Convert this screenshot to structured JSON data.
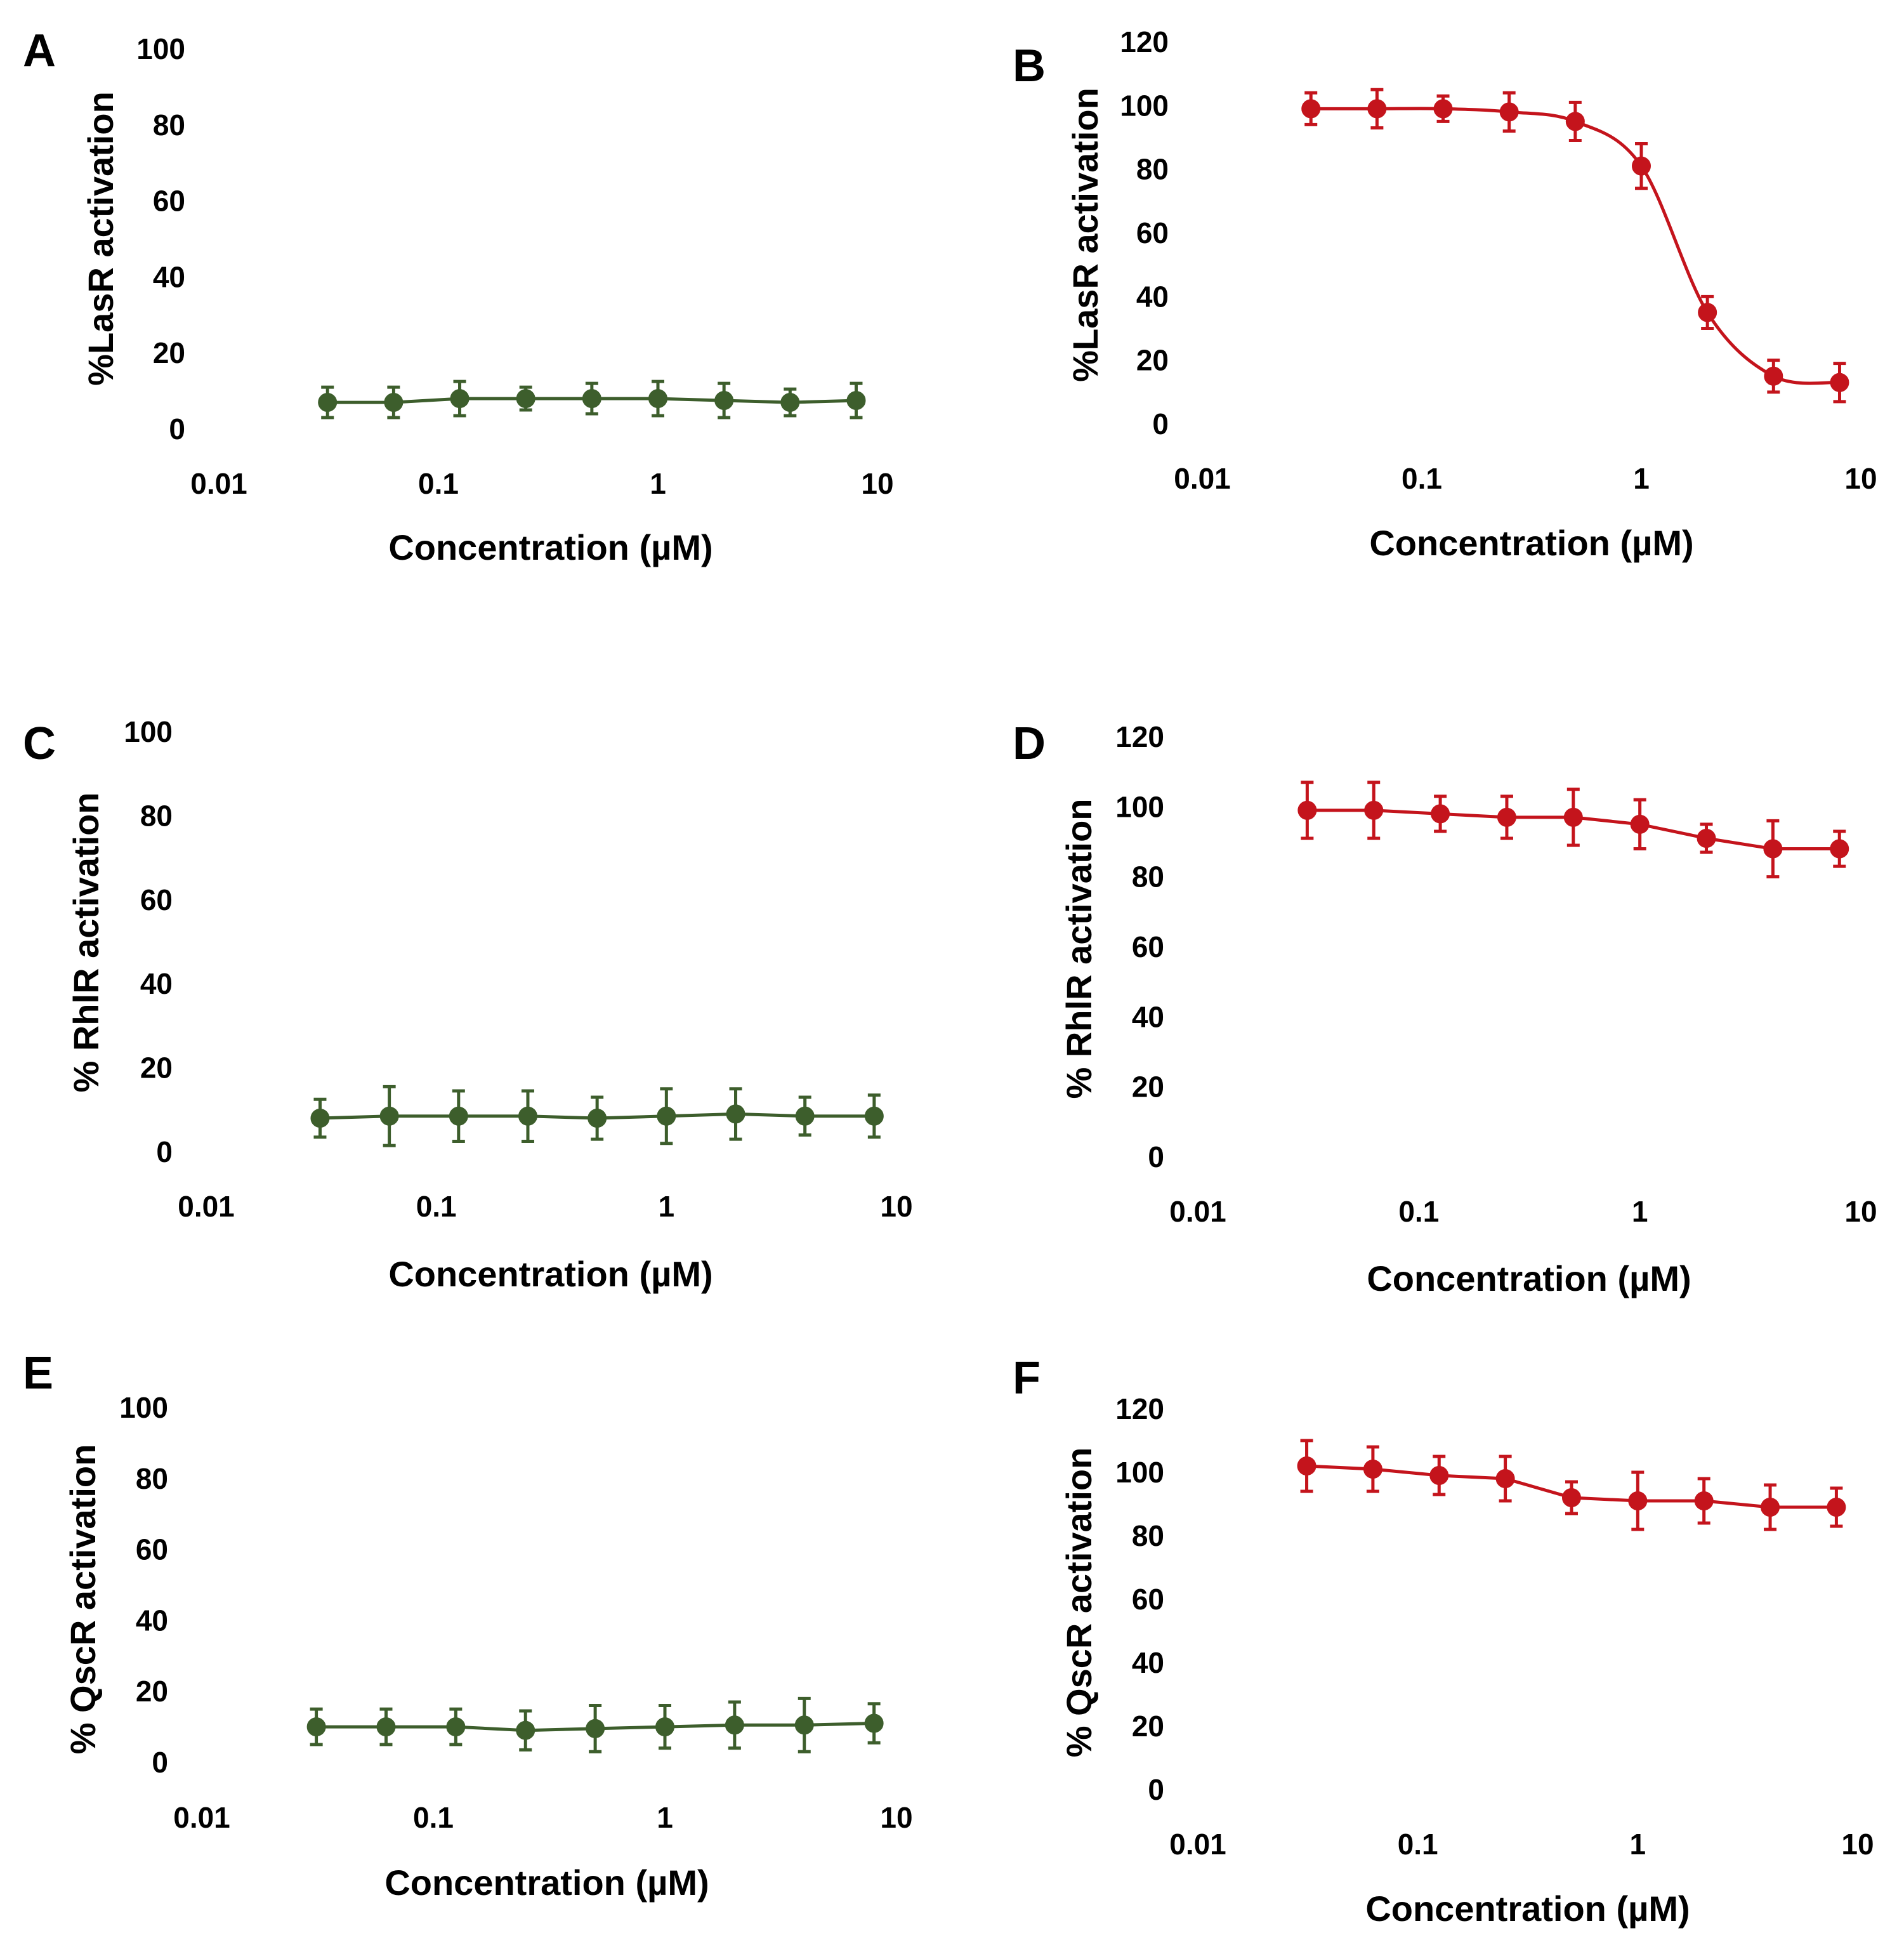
{
  "colors": {
    "green": "#3d5e2c",
    "red": "#c4141c"
  },
  "chart_data": [
    {
      "panel": "A",
      "type": "line",
      "color": "green",
      "ylabel": "%LasR activation",
      "xlabel": "Concentration (µM)",
      "xscale": "log",
      "xlim": [
        0.01,
        10
      ],
      "ylim": [
        0,
        100
      ],
      "xticks": [
        "0.01",
        "0.1",
        "1",
        "10"
      ],
      "yticks": [
        "0",
        "20",
        "40",
        "60",
        "80",
        "100"
      ],
      "series": [
        {
          "name": "A",
          "x": [
            0.03125,
            0.0625,
            0.125,
            0.25,
            0.5,
            1,
            2,
            4,
            8
          ],
          "y": [
            7,
            7,
            8,
            8,
            8,
            8,
            7.5,
            7,
            7.5
          ],
          "err": [
            4,
            4,
            4.5,
            3,
            4,
            4.5,
            4.5,
            3.5,
            4.5
          ]
        }
      ]
    },
    {
      "panel": "B",
      "type": "line",
      "color": "red",
      "smooth": true,
      "ylabel": "%LasR activation",
      "xlabel": "Concentration (µM)",
      "xscale": "log",
      "xlim": [
        0.01,
        10
      ],
      "ylim": [
        0,
        120
      ],
      "xticks": [
        "0.01",
        "0.1",
        "1",
        "10"
      ],
      "yticks": [
        "0",
        "20",
        "40",
        "60",
        "80",
        "100",
        "120"
      ],
      "series": [
        {
          "name": "B",
          "x": [
            0.03125,
            0.0625,
            0.125,
            0.25,
            0.5,
            1,
            2,
            4,
            8
          ],
          "y": [
            99,
            99,
            99,
            98,
            95,
            81,
            35,
            15,
            13
          ],
          "err": [
            5,
            6,
            4,
            6,
            6,
            7,
            5,
            5,
            6
          ]
        }
      ]
    },
    {
      "panel": "C",
      "type": "line",
      "color": "green",
      "ylabel": "% RhlR activation",
      "xlabel": "Concentration (µM)",
      "xscale": "log",
      "xlim": [
        0.01,
        10
      ],
      "ylim": [
        0,
        100
      ],
      "xticks": [
        "0.01",
        "0.1",
        "1",
        "10"
      ],
      "yticks": [
        "0",
        "20",
        "40",
        "60",
        "80",
        "100"
      ],
      "series": [
        {
          "name": "C",
          "x": [
            0.03125,
            0.0625,
            0.125,
            0.25,
            0.5,
            1,
            2,
            4,
            8
          ],
          "y": [
            8,
            8.5,
            8.5,
            8.5,
            8,
            8.5,
            9,
            8.5,
            8.5
          ],
          "err": [
            4.5,
            7,
            6,
            6,
            5,
            6.5,
            6,
            4.5,
            5
          ]
        }
      ]
    },
    {
      "panel": "D",
      "type": "line",
      "color": "red",
      "ylabel": "% RhlR activation",
      "xlabel": "Concentration (µM)",
      "xscale": "log",
      "xlim": [
        0.01,
        10
      ],
      "ylim": [
        0,
        120
      ],
      "xticks": [
        "0.01",
        "0.1",
        "1",
        "10"
      ],
      "yticks": [
        "0",
        "20",
        "40",
        "60",
        "80",
        "100",
        "120"
      ],
      "series": [
        {
          "name": "D",
          "x": [
            0.03125,
            0.0625,
            0.125,
            0.25,
            0.5,
            1,
            2,
            4,
            8
          ],
          "y": [
            99,
            99,
            98,
            97,
            97,
            95,
            91,
            88,
            88
          ],
          "err": [
            8,
            8,
            5,
            6,
            8,
            7,
            4,
            8,
            5
          ]
        }
      ]
    },
    {
      "panel": "E",
      "type": "line",
      "color": "green",
      "ylabel": "% QscR activation",
      "xlabel": "Concentration (µM)",
      "xscale": "log",
      "xlim": [
        0.01,
        10
      ],
      "ylim": [
        0,
        100
      ],
      "xticks": [
        "0.01",
        "0.1",
        "1",
        "10"
      ],
      "yticks": [
        "0",
        "20",
        "40",
        "60",
        "80",
        "100"
      ],
      "series": [
        {
          "name": "E",
          "x": [
            0.03125,
            0.0625,
            0.125,
            0.25,
            0.5,
            1,
            2,
            4,
            8
          ],
          "y": [
            10,
            10,
            10,
            9,
            9.5,
            10,
            10.5,
            10.5,
            11
          ],
          "err": [
            5,
            5,
            5,
            5.5,
            6.5,
            6,
            6.5,
            7.5,
            5.5
          ]
        }
      ]
    },
    {
      "panel": "F",
      "type": "line",
      "color": "red",
      "ylabel": "% QscR activation",
      "xlabel": "Concentration (µM)",
      "xscale": "log",
      "xlim": [
        0.01,
        10
      ],
      "ylim": [
        0,
        120
      ],
      "xticks": [
        "0.01",
        "0.1",
        "1",
        "10"
      ],
      "yticks": [
        "0",
        "20",
        "40",
        "60",
        "80",
        "100",
        "120"
      ],
      "series": [
        {
          "name": "F",
          "x": [
            0.03125,
            0.0625,
            0.125,
            0.25,
            0.5,
            1,
            2,
            4,
            8
          ],
          "y": [
            102,
            101,
            99,
            98,
            92,
            91,
            91,
            89,
            89
          ],
          "err": [
            8,
            7,
            6,
            7,
            5,
            9,
            7,
            7,
            6
          ]
        }
      ]
    }
  ]
}
